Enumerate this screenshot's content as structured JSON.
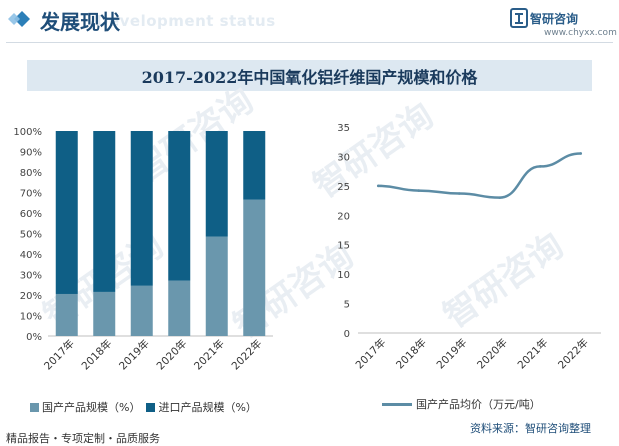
{
  "header": {
    "title": "发展现状",
    "ghost_text": "Development status",
    "logo_name": "智研咨询",
    "logo_url": "www.chyxx.com"
  },
  "watermark_text": "智研咨询",
  "chart_title": "2017-2022年中国氧化铝纤维国产规模和价格",
  "colors": {
    "domestic": "#6a97ad",
    "import": "#0f5f86",
    "line": "#5c8ca5",
    "title_bg": "#dde8f1"
  },
  "chart_data": [
    {
      "type": "bar",
      "stacked": "percent",
      "categories": [
        "2017年",
        "2018年",
        "2019年",
        "2020年",
        "2021年",
        "2022年"
      ],
      "series": [
        {
          "name": "国产产品规模（%）",
          "values": [
            20.5,
            21.5,
            24.5,
            27,
            48.5,
            66.5
          ]
        },
        {
          "name": "进口产品规模（%）",
          "values": [
            79.5,
            78.5,
            75.5,
            73,
            51.5,
            33.5
          ]
        }
      ],
      "yticks": [
        "0%",
        "10%",
        "20%",
        "30%",
        "40%",
        "50%",
        "60%",
        "70%",
        "80%",
        "90%",
        "100%"
      ],
      "ylim": [
        0,
        100
      ],
      "legend": "bottom-left"
    },
    {
      "type": "line",
      "categories": [
        "2017年",
        "2018年",
        "2019年",
        "2020年",
        "2021年",
        "2022年"
      ],
      "series": [
        {
          "name": "国产产品均价（万元/吨）",
          "values": [
            25,
            24.2,
            23.7,
            23,
            28.3,
            30.5
          ]
        }
      ],
      "yticks": [
        "0",
        "5",
        "10",
        "15",
        "20",
        "25",
        "30",
        "35"
      ],
      "ylim": [
        0,
        35
      ],
      "legend": "bottom-right"
    }
  ],
  "footer": {
    "left": "精品报告・专项定制・品质服务",
    "source": "资料来源：智研咨询整理"
  }
}
